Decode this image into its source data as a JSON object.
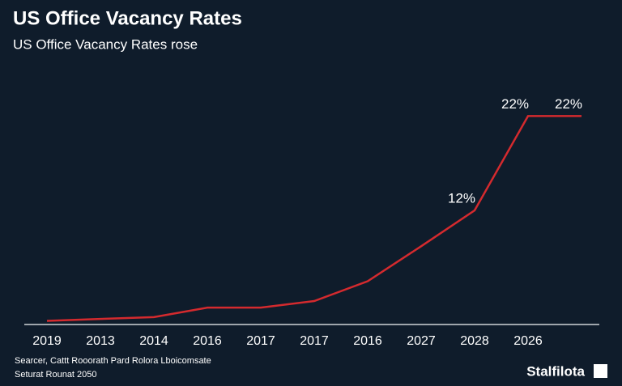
{
  "chart_data": {
    "type": "line",
    "title": "US Office Vacancy Rates",
    "subtitle": "US Office Vacancy Rates rose",
    "categories": [
      "2019",
      "2013",
      "2014",
      "2016",
      "2017",
      "2017",
      "2016",
      "2027",
      "2028",
      "2026",
      null
    ],
    "series": [
      {
        "color": "#d42a2e",
        "values": [
          0.3,
          0.5,
          0.7,
          1.7,
          1.7,
          2.4,
          4.5,
          8.2,
          12,
          22,
          22
        ],
        "value_labels": [
          null,
          null,
          null,
          null,
          null,
          null,
          null,
          null,
          "12%",
          "22%",
          "22%"
        ]
      }
    ],
    "ylim": [
      0,
      24
    ]
  },
  "footer": {
    "source": [
      "Searcer, Cattt Rooorath Pard Rolora Lboicomsate",
      "Seturat Rounat 2050"
    ],
    "logo": "Stalfilota"
  }
}
